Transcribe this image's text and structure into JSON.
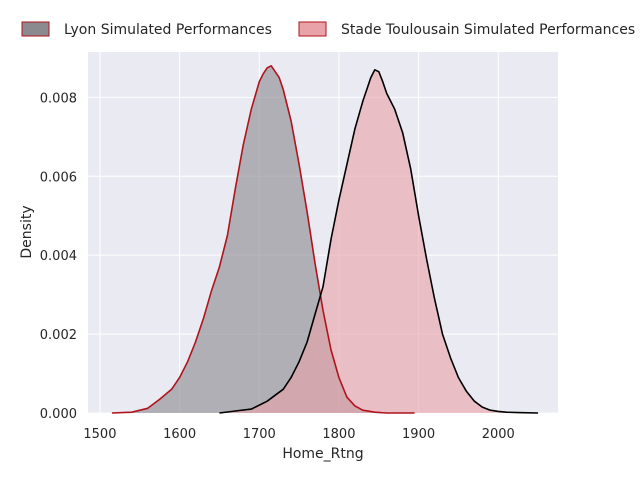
{
  "chart_data": {
    "type": "area",
    "title": "",
    "xlabel": "Home_Rtng",
    "ylabel": "Density",
    "xlim": [
      1485,
      2075
    ],
    "ylim": [
      0,
      0.00915
    ],
    "xticks": [
      1500,
      1600,
      1700,
      1800,
      1900,
      2000
    ],
    "yticks": [
      0.0,
      0.002,
      0.004,
      0.006,
      0.008
    ],
    "ytick_labels": [
      "0.000",
      "0.002",
      "0.004",
      "0.006",
      "0.008"
    ],
    "grid": true,
    "legend_position": "top, outside plot, two columns",
    "series": [
      {
        "name": "Lyon Simulated Performances",
        "fill_color": "#8a8a8f",
        "line_color": "#b0131c",
        "x": [
          1515,
          1540,
          1560,
          1575,
          1590,
          1600,
          1610,
          1620,
          1630,
          1640,
          1650,
          1660,
          1670,
          1680,
          1690,
          1700,
          1705,
          1710,
          1715,
          1720,
          1725,
          1730,
          1740,
          1750,
          1760,
          1770,
          1780,
          1790,
          1800,
          1810,
          1820,
          1830,
          1845,
          1860,
          1880,
          1895
        ],
        "y": [
          0.0,
          2e-05,
          0.00012,
          0.00035,
          0.0006,
          0.0009,
          0.0013,
          0.0018,
          0.0024,
          0.0031,
          0.0037,
          0.0045,
          0.0057,
          0.0068,
          0.0077,
          0.0084,
          0.0086,
          0.00875,
          0.0088,
          0.00865,
          0.0085,
          0.0082,
          0.0074,
          0.0063,
          0.0051,
          0.0038,
          0.0026,
          0.0016,
          0.0009,
          0.0004,
          0.00018,
          7e-05,
          2e-05,
          0.0,
          0.0,
          0.0
        ]
      },
      {
        "name": "Stade Toulousain Simulated Performances",
        "fill_color": "#e8a3a9",
        "line_color": "#000000",
        "x": [
          1650,
          1670,
          1690,
          1700,
          1710,
          1720,
          1730,
          1740,
          1750,
          1760,
          1770,
          1780,
          1790,
          1800,
          1810,
          1820,
          1830,
          1840,
          1845,
          1850,
          1855,
          1860,
          1870,
          1880,
          1890,
          1900,
          1910,
          1920,
          1930,
          1940,
          1950,
          1960,
          1970,
          1980,
          1990,
          2000,
          2010,
          2025,
          2050
        ],
        "y": [
          0.0,
          5e-05,
          0.0001,
          0.0002,
          0.0003,
          0.00045,
          0.0006,
          0.0009,
          0.0013,
          0.0018,
          0.0025,
          0.0032,
          0.0044,
          0.0054,
          0.0063,
          0.0072,
          0.0079,
          0.0085,
          0.0087,
          0.00865,
          0.0084,
          0.0081,
          0.0077,
          0.0071,
          0.0062,
          0.005,
          0.0039,
          0.0029,
          0.002,
          0.0014,
          0.0009,
          0.00055,
          0.0003,
          0.00015,
          7e-05,
          4e-05,
          2e-05,
          1e-05,
          0.0
        ]
      }
    ]
  }
}
